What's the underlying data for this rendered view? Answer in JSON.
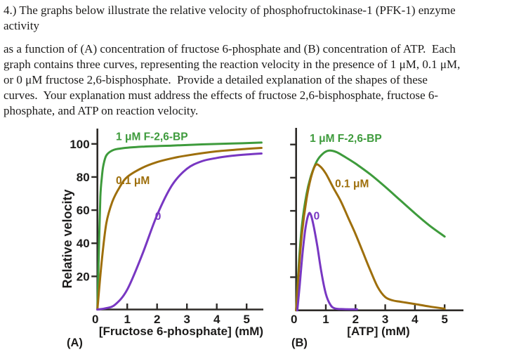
{
  "question": {
    "paragraph1_lines": [
      "4.) The graphs below illustrate the relative velocity of phosphofructokinase-1 (PFK-1) enzyme",
      "activity"
    ],
    "paragraph2_lines": [
      "as a function of (A) concentration of fructose 6-phosphate and (B) concentration of ATP.  Each",
      "graph contains three curves, representing the reaction velocity in the presence of 1 μM, 0.1 μM,",
      "or 0 μM fructose 2,6-bisphosphate.  Provide a detailed explanation of the shapes of these",
      "curves.  Your explanation must address the effects of fructose 2,6-bisphosphate, fructose 6-",
      "phosphate, and ATP on reaction velocity."
    ]
  },
  "colors": {
    "green": "#3e9b3c",
    "brown": "#9e6f0c",
    "purple": "#7837c2",
    "axis": "#2e2b28",
    "label_text": "#1c1b1a"
  },
  "chart_data": [
    {
      "type": "line",
      "panel_label": "(A)",
      "xlabel": "[Fructose 6-phosphate] (mM)",
      "ylabel": "Relative velocity",
      "xlim": [
        0,
        5.55
      ],
      "ylim": [
        0,
        110
      ],
      "xticks": [
        0,
        1,
        2,
        3,
        4,
        5
      ],
      "yticks": [
        20,
        40,
        60,
        80,
        100
      ],
      "ytick_labels_visible": true,
      "grid": false,
      "legend": "inline curve labels",
      "series": [
        {
          "name": "1 μM F-2,6-BP",
          "color_key": "green",
          "label_pos": [
            0.62,
            104.5
          ],
          "points": [
            [
              0,
              0
            ],
            [
              0.05,
              35
            ],
            [
              0.1,
              68
            ],
            [
              0.15,
              80
            ],
            [
              0.2,
              87
            ],
            [
              0.3,
              93
            ],
            [
              0.5,
              96
            ],
            [
              0.8,
              97.3
            ],
            [
              1.5,
              98.3
            ],
            [
              2.5,
              99
            ],
            [
              3.5,
              99.7
            ],
            [
              4.5,
              100.2
            ],
            [
              5.5,
              100.8
            ]
          ]
        },
        {
          "name": "0.1 μM",
          "color_key": "brown",
          "label_pos": [
            0.62,
            78
          ],
          "points": [
            [
              0,
              0
            ],
            [
              0.15,
              30
            ],
            [
              0.3,
              52
            ],
            [
              0.5,
              65
            ],
            [
              0.75,
              74
            ],
            [
              1,
              80
            ],
            [
              1.5,
              85.5
            ],
            [
              2,
              89
            ],
            [
              2.5,
              91.3
            ],
            [
              3,
              93
            ],
            [
              4,
              95.5
            ],
            [
              5,
              97
            ],
            [
              5.5,
              97.6
            ]
          ]
        },
        {
          "name": "0",
          "color_key": "purple",
          "label_pos": [
            1.93,
            56.5
          ],
          "points": [
            [
              0,
              0
            ],
            [
              0.3,
              0.8
            ],
            [
              0.6,
              3
            ],
            [
              1,
              12
            ],
            [
              1.5,
              33
            ],
            [
              2,
              57
            ],
            [
              2.5,
              75
            ],
            [
              3,
              85
            ],
            [
              3.5,
              89.5
            ],
            [
              4,
              91.5
            ],
            [
              4.5,
              92.8
            ],
            [
              5,
              93.6
            ],
            [
              5.5,
              94.2
            ]
          ]
        }
      ]
    },
    {
      "type": "line",
      "panel_label": "(B)",
      "xlabel": "[ATP] (mM)",
      "ylabel": "",
      "xlim": [
        0,
        5.6
      ],
      "ylim": [
        0,
        110
      ],
      "xticks": [
        0,
        1,
        2,
        3,
        4,
        5
      ],
      "yticks": [
        20,
        40,
        60,
        80,
        100
      ],
      "ytick_labels_visible": false,
      "grid": false,
      "legend": "inline curve labels",
      "series": [
        {
          "name": "1 μM F-2,6-BP",
          "color_key": "green",
          "label_pos": [
            0.46,
            104
          ],
          "points": [
            [
              0,
              0
            ],
            [
              0.1,
              30
            ],
            [
              0.2,
              52
            ],
            [
              0.35,
              70
            ],
            [
              0.5,
              81
            ],
            [
              0.7,
              90
            ],
            [
              0.9,
              94.5
            ],
            [
              1.1,
              96.3
            ],
            [
              1.35,
              95.5
            ],
            [
              1.6,
              93
            ],
            [
              2,
              88.5
            ],
            [
              2.5,
              82
            ],
            [
              3,
              74.5
            ],
            [
              3.5,
              66.5
            ],
            [
              4,
              58.5
            ],
            [
              4.5,
              51
            ],
            [
              5,
              44.5
            ]
          ]
        },
        {
          "name": "0.1 μM",
          "color_key": "brown",
          "label_pos": [
            1.31,
            76.5
          ],
          "points": [
            [
              0,
              0
            ],
            [
              0.1,
              26
            ],
            [
              0.2,
              47
            ],
            [
              0.35,
              67
            ],
            [
              0.5,
              80
            ],
            [
              0.65,
              87.5
            ],
            [
              0.8,
              87
            ],
            [
              1,
              82.5
            ],
            [
              1.25,
              74
            ],
            [
              1.5,
              66
            ],
            [
              1.75,
              56
            ],
            [
              2,
              46
            ],
            [
              2.25,
              35
            ],
            [
              2.5,
              24
            ],
            [
              2.75,
              14
            ],
            [
              3,
              8
            ],
            [
              3.25,
              6
            ],
            [
              3.5,
              5.2
            ],
            [
              4,
              3.8
            ],
            [
              4.5,
              2.3
            ],
            [
              5,
              1
            ]
          ]
        },
        {
          "name": "0",
          "color_key": "purple",
          "label_pos": [
            0.59,
            57
          ],
          "points": [
            [
              0.04,
              0
            ],
            [
              0.12,
              15
            ],
            [
              0.22,
              35
            ],
            [
              0.32,
              50
            ],
            [
              0.42,
              58
            ],
            [
              0.5,
              57.5
            ],
            [
              0.6,
              50
            ],
            [
              0.72,
              38
            ],
            [
              0.85,
              23
            ],
            [
              1,
              10
            ],
            [
              1.15,
              3.5
            ],
            [
              1.3,
              1.2
            ],
            [
              1.6,
              0.7
            ],
            [
              2.05,
              0.6
            ]
          ]
        }
      ]
    }
  ]
}
